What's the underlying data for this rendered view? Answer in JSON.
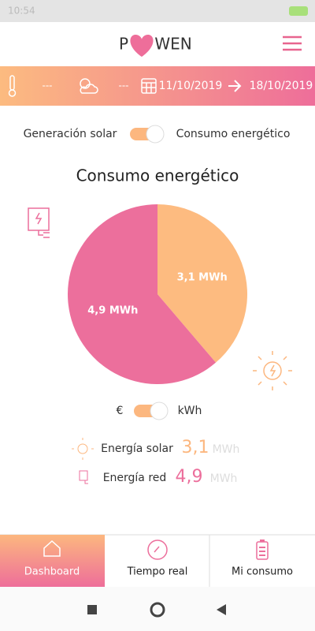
{
  "status_bar": {
    "time": "10:54"
  },
  "header": {
    "logo_left": "P",
    "logo_right": "WEN"
  },
  "filter_bar": {
    "temperature": "---",
    "weather": "---",
    "date_from": "11/10/2019",
    "date_to": "18/10/2019"
  },
  "mode_toggle": {
    "left": "Generación solar",
    "right": "Consumo energético"
  },
  "chart_data": {
    "type": "pie",
    "title": "Consumo energético",
    "categories": [
      "Energía solar",
      "Energía red"
    ],
    "values": [
      3.1,
      4.9
    ],
    "value_labels": [
      "3,1 MWh",
      "4,9 MWh"
    ],
    "colors": [
      "#fdbb80",
      "#ec6f9c"
    ]
  },
  "unit_toggle": {
    "left": "€",
    "right": "kWh"
  },
  "summary": [
    {
      "label": "Energía solar",
      "value": "3,1",
      "unit": "MWh"
    },
    {
      "label": "Energía red",
      "value": "4,9",
      "unit": "MWh"
    }
  ],
  "bottom_nav": [
    "Dashboard",
    "Tiempo real",
    "Mi consumo"
  ]
}
